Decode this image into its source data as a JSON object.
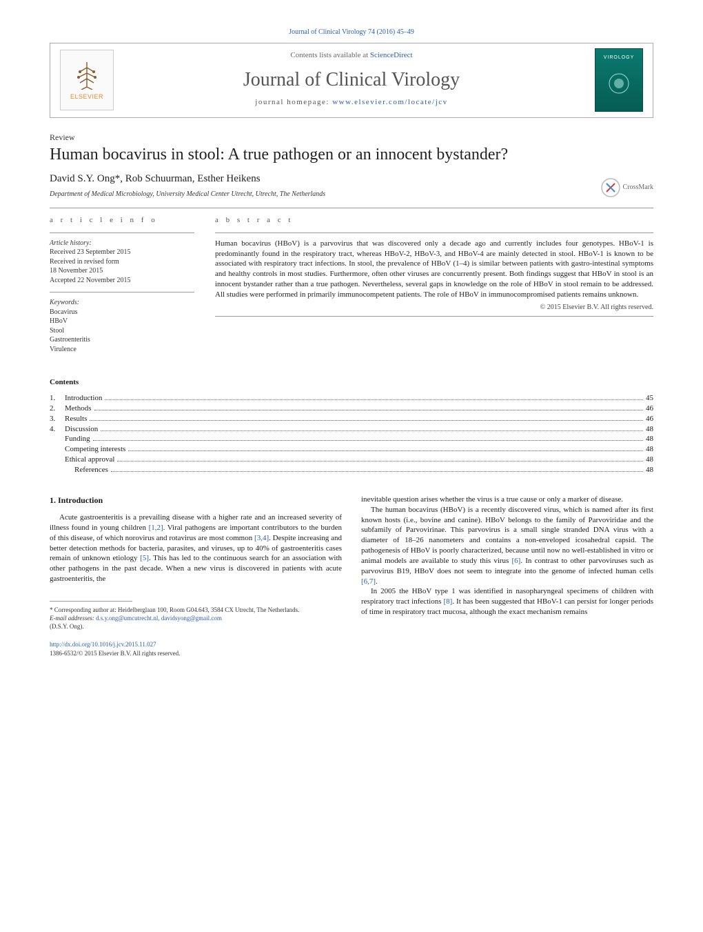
{
  "citation_top": "Journal of Clinical Virology 74 (2016) 45–49",
  "header": {
    "contents_line_pre": "Contents lists available at ",
    "contents_link": "ScienceDirect",
    "journal_name": "Journal of Clinical Virology",
    "homepage_pre": "journal homepage: ",
    "homepage_link": "www.elsevier.com/locate/jcv",
    "publisher_name": "ELSEVIER",
    "cover_text": "VIROLOGY"
  },
  "article": {
    "type": "Review",
    "title": "Human bocavirus in stool: A true pathogen or an innocent bystander?",
    "authors": "David S.Y. Ong*, Rob Schuurman, Esther Heikens",
    "affiliation": "Department of Medical Microbiology, University Medical Center Utrecht, Utrecht, The Netherlands",
    "crossmark": "CrossMark"
  },
  "info": {
    "head_left": "a r t i c l e   i n f o",
    "head_right": "a b s t r a c t",
    "history_label": "Article history:",
    "history": [
      "Received 23 September 2015",
      "Received in revised form",
      "18 November 2015",
      "Accepted 22 November 2015"
    ],
    "keywords_label": "Keywords:",
    "keywords": [
      "Bocavirus",
      "HBoV",
      "Stool",
      "Gastroenteritis",
      "Virulence"
    ]
  },
  "abstract": {
    "text": "Human bocavirus (HBoV) is a parvovirus that was discovered only a decade ago and currently includes four genotypes. HBoV-1 is predominantly found in the respiratory tract, whereas HBoV-2, HBoV-3, and HBoV-4 are mainly detected in stool. HBoV-1 is known to be associated with respiratory tract infections. In stool, the prevalence of HBoV (1–4) is similar between patients with gastro-intestinal symptoms and healthy controls in most studies. Furthermore, often other viruses are concurrently present. Both findings suggest that HBoV in stool is an innocent bystander rather than a true pathogen. Nevertheless, several gaps in knowledge on the role of HBoV in stool remain to be addressed. All studies were performed in primarily immunocompetent patients. The role of HBoV in immunocompromised patients remains unknown.",
    "copyright": "© 2015 Elsevier B.V. All rights reserved."
  },
  "contents": {
    "head": "Contents",
    "items": [
      {
        "num": "1.",
        "label": "Introduction",
        "page": "45",
        "indent": 0
      },
      {
        "num": "2.",
        "label": "Methods",
        "page": "46",
        "indent": 0
      },
      {
        "num": "3.",
        "label": "Results",
        "page": "46",
        "indent": 0
      },
      {
        "num": "4.",
        "label": "Discussion",
        "page": "48",
        "indent": 0
      },
      {
        "num": "",
        "label": "Funding",
        "page": "48",
        "indent": 1
      },
      {
        "num": "",
        "label": "Competing interests",
        "page": "48",
        "indent": 1
      },
      {
        "num": "",
        "label": "Ethical approval",
        "page": "48",
        "indent": 1
      },
      {
        "num": "",
        "label": "References",
        "page": "48",
        "indent": 2
      }
    ]
  },
  "body": {
    "section_head": "1.  Introduction",
    "col1": [
      {
        "text": "Acute gastroenteritis is a prevailing disease with a higher rate and an increased severity of illness found in young children ",
        "cite": "[1,2]",
        "tail": ". Viral pathogens are important contributors to the burden of this disease, of which norovirus and rotavirus are most common ",
        "cite2": "[3,4]",
        "tail2": ". Despite increasing and better detection methods for bacteria, parasites, and viruses, up to 40% of gastroenteritis cases remain of unknown etiology ",
        "cite3": "[5]",
        "tail3": ". This has led to the continuous search for an association with other pathogens in the past decade. When a new virus is discovered in patients with acute gastroenteritis, the"
      }
    ],
    "col2": [
      {
        "text": "inevitable question arises whether the virus is a true cause or only a marker of disease."
      },
      {
        "text": "The human bocavirus (HBoV) is a recently discovered virus, which is named after its first known hosts (i.e., bovine and canine). HBoV belongs to the family of Parvoviridae and the subfamily of Parvovirinae. This parvovirus is a small single stranded DNA virus with a diameter of 18–26 nanometers and contains a non-enveloped icosahedral capsid. The pathogenesis of HBoV is poorly characterized, because until now no well-established in vitro or animal models are available to study this virus ",
        "cite": "[6]",
        "tail": ". In contrast to other parvoviruses such as parvovirus B19, HBoV does not seem to integrate into the genome of infected human cells ",
        "cite2": "[6,7]",
        "tail2": "."
      },
      {
        "text": "In 2005 the HBoV type 1 was identified in nasopharyngeal specimens of children with respiratory tract infections ",
        "cite": "[8]",
        "tail": ". It has been suggested that HBoV-1 can persist for longer periods of time in respiratory tract mucosa, although the exact mechanism remains"
      }
    ]
  },
  "footnotes": {
    "corr": "* Corresponding author at: Heidelberglaan 100, Room G04.643, 3584 CX Utrecht, The Netherlands.",
    "email_label": "E-mail addresses: ",
    "emails": "d.s.y.ong@umcutrecht.nl, davidsyong@gmail.com",
    "email_owner": "(D.S.Y. Ong).",
    "doi": "http://dx.doi.org/10.1016/j.jcv.2015.11.027",
    "issn": "1386-6532/© 2015 Elsevier B.V. All rights reserved."
  },
  "colors": {
    "link": "#2a5db0",
    "text": "#1a1a1a",
    "rule": "#999999",
    "pub_orange": "#e68a2e",
    "cover_bg_top": "#0b7a6f",
    "cover_bg_bot": "#065c54"
  }
}
